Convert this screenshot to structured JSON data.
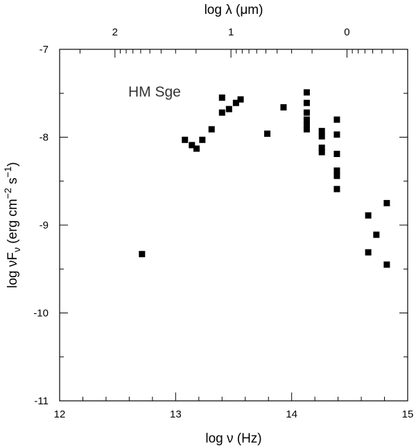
{
  "chart_data": {
    "type": "scatter",
    "xlabel": "log ν (Hz)",
    "ylabel": "log νF_ν (erg cm^-2 s^-1)",
    "top_xlabel": "log λ (μm)",
    "xlim": [
      12,
      15
    ],
    "ylim": [
      -11,
      -7
    ],
    "xticks": [
      12,
      13,
      14,
      15
    ],
    "xtick_labels": [
      "12",
      "13",
      "14",
      "15"
    ],
    "yticks": [
      -7,
      -8,
      -9,
      -10,
      -11
    ],
    "ytick_labels": [
      "-7",
      "-8",
      "-9",
      "-10",
      "-11"
    ],
    "top_ticks": [
      {
        "log_lambda": 2,
        "label": "2"
      },
      {
        "log_lambda": 1,
        "label": "1"
      },
      {
        "log_lambda": 0,
        "label": "0"
      }
    ],
    "annotation": "HM Sge",
    "grid": false,
    "marker": "square",
    "marker_color": "#000000",
    "points": [
      {
        "x": 12.71,
        "y": -9.33
      },
      {
        "x": 13.08,
        "y": -8.03
      },
      {
        "x": 13.14,
        "y": -8.09
      },
      {
        "x": 13.18,
        "y": -8.13
      },
      {
        "x": 13.23,
        "y": -8.03
      },
      {
        "x": 13.31,
        "y": -7.91
      },
      {
        "x": 13.4,
        "y": -7.72
      },
      {
        "x": 13.4,
        "y": -7.55
      },
      {
        "x": 13.46,
        "y": -7.68
      },
      {
        "x": 13.52,
        "y": -7.61
      },
      {
        "x": 13.56,
        "y": -7.57
      },
      {
        "x": 13.79,
        "y": -7.96
      },
      {
        "x": 13.93,
        "y": -7.66
      },
      {
        "x": 14.13,
        "y": -7.49
      },
      {
        "x": 14.13,
        "y": -7.61
      },
      {
        "x": 14.13,
        "y": -7.72
      },
      {
        "x": 14.13,
        "y": -7.8
      },
      {
        "x": 14.13,
        "y": -7.86
      },
      {
        "x": 14.13,
        "y": -7.91
      },
      {
        "x": 14.26,
        "y": -7.93
      },
      {
        "x": 14.26,
        "y": -7.99
      },
      {
        "x": 14.26,
        "y": -8.12
      },
      {
        "x": 14.26,
        "y": -8.17
      },
      {
        "x": 14.39,
        "y": -7.8
      },
      {
        "x": 14.39,
        "y": -7.97
      },
      {
        "x": 14.39,
        "y": -8.19
      },
      {
        "x": 14.39,
        "y": -8.38
      },
      {
        "x": 14.39,
        "y": -8.44
      },
      {
        "x": 14.39,
        "y": -8.59
      },
      {
        "x": 14.66,
        "y": -8.89
      },
      {
        "x": 14.66,
        "y": -9.31
      },
      {
        "x": 14.73,
        "y": -9.11
      },
      {
        "x": 14.82,
        "y": -8.75
      },
      {
        "x": 14.82,
        "y": -9.45
      }
    ]
  }
}
